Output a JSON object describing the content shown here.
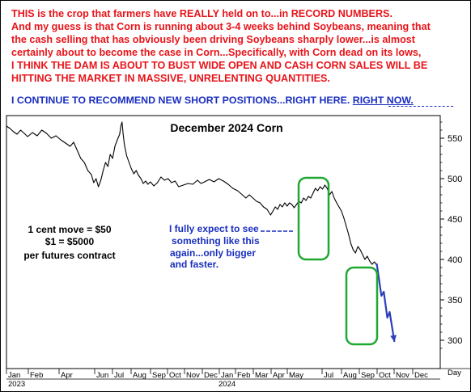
{
  "commentary": {
    "red_lines": [
      "THIS is the crop that farmers have REALLY held on to...in RECORD NUMBERS.",
      "And my guess is that Corn is running about 3-4 weeks behind Soybeans, meaning that",
      "the cash selling that has obviously been driving Soybeans sharply lower...is almost",
      "certainly about to become the case in Corn...Specifically, with Corn dead on its lows,",
      "I THINK THE DAM IS ABOUT TO BUST WIDE OPEN AND CASH CORN SALES WILL BE",
      "HITTING THE MARKET IN MASSIVE, UNRELENTING QUANTITIES."
    ],
    "blue_line": "I CONTINUE TO RECOMMEND NEW SHORT POSITIONS...RIGHT HERE.",
    "blue_line_emphasis": "RIGHT NOW."
  },
  "chart_data": {
    "type": "line",
    "title": "December 2024 Corn",
    "ylim": [
      280,
      570
    ],
    "y_ticks": [
      300,
      350,
      400,
      450,
      500,
      550
    ],
    "x_month_labels": [
      "Jan",
      "Feb",
      "Apr",
      "Jun",
      "Jul",
      "Aug",
      "Sep",
      "Oct",
      "Nov",
      "Dec",
      "Jan",
      "Feb",
      "Mar",
      "Apr",
      "May",
      "Jul",
      "Aug",
      "Sep",
      "Oct",
      "Nov",
      "Dec"
    ],
    "x_year_labels": [
      "2023",
      "2024"
    ],
    "x_axis_unit": "Day",
    "annotations": {
      "contract_info": [
        "1 cent move = $50",
        "$1 = $5000",
        "per futures contract"
      ],
      "expectation": [
        "I fully expect to see",
        "something like this",
        "again...only bigger",
        "and faster."
      ]
    },
    "series": [
      {
        "values": [
          [
            0,
            565
          ],
          [
            3,
            562
          ],
          [
            6,
            558
          ],
          [
            9,
            555
          ],
          [
            12,
            560
          ],
          [
            15,
            556
          ],
          [
            18,
            552
          ],
          [
            22,
            557
          ],
          [
            26,
            553
          ],
          [
            30,
            560
          ],
          [
            34,
            556
          ],
          [
            38,
            550
          ],
          [
            42,
            553
          ],
          [
            46,
            548
          ],
          [
            50,
            544
          ],
          [
            54,
            540
          ],
          [
            57,
            545
          ],
          [
            60,
            535
          ],
          [
            63,
            525
          ],
          [
            66,
            520
          ],
          [
            69,
            510
          ],
          [
            72,
            505
          ],
          [
            74,
            495
          ],
          [
            76,
            500
          ],
          [
            78,
            490
          ],
          [
            80,
            498
          ],
          [
            82,
            510
          ],
          [
            84,
            520
          ],
          [
            86,
            515
          ],
          [
            88,
            530
          ],
          [
            90,
            525
          ],
          [
            92,
            540
          ],
          [
            94,
            548
          ],
          [
            96,
            555
          ],
          [
            97,
            565
          ],
          [
            98,
            570
          ],
          [
            99,
            555
          ],
          [
            100,
            542
          ],
          [
            102,
            528
          ],
          [
            104,
            520
          ],
          [
            106,
            512
          ],
          [
            108,
            506
          ],
          [
            110,
            510
          ],
          [
            112,
            504
          ],
          [
            114,
            500
          ],
          [
            116,
            494
          ],
          [
            118,
            497
          ],
          [
            120,
            493
          ],
          [
            122,
            496
          ],
          [
            125,
            491
          ],
          [
            128,
            495
          ],
          [
            131,
            502
          ],
          [
            134,
            498
          ],
          [
            137,
            500
          ],
          [
            140,
            495
          ],
          [
            143,
            497
          ],
          [
            146,
            490
          ],
          [
            150,
            492
          ],
          [
            154,
            494
          ],
          [
            158,
            493
          ],
          [
            162,
            498
          ],
          [
            165,
            494
          ],
          [
            168,
            496
          ],
          [
            172,
            499
          ],
          [
            176,
            496
          ],
          [
            180,
            500
          ],
          [
            184,
            497
          ],
          [
            188,
            493
          ],
          [
            192,
            488
          ],
          [
            196,
            485
          ],
          [
            200,
            480
          ],
          [
            203,
            476
          ],
          [
            206,
            480
          ],
          [
            209,
            476
          ],
          [
            212,
            472
          ],
          [
            215,
            470
          ],
          [
            218,
            465
          ],
          [
            221,
            462
          ],
          [
            224,
            455
          ],
          [
            226,
            460
          ],
          [
            228,
            465
          ],
          [
            230,
            462
          ],
          [
            232,
            468
          ],
          [
            234,
            465
          ],
          [
            236,
            470
          ],
          [
            238,
            466
          ],
          [
            240,
            470
          ],
          [
            242,
            468
          ],
          [
            244,
            464
          ],
          [
            246,
            468
          ],
          [
            248,
            472
          ],
          [
            250,
            470
          ],
          [
            252,
            476
          ],
          [
            254,
            473
          ],
          [
            256,
            478
          ],
          [
            258,
            476
          ],
          [
            260,
            482
          ],
          [
            262,
            488
          ],
          [
            264,
            485
          ],
          [
            266,
            490
          ],
          [
            268,
            487
          ],
          [
            270,
            492
          ],
          [
            272,
            488
          ],
          [
            274,
            480
          ],
          [
            276,
            484
          ],
          [
            278,
            476
          ],
          [
            280,
            470
          ],
          [
            282,
            465
          ],
          [
            284,
            460
          ],
          [
            286,
            452
          ],
          [
            288,
            442
          ],
          [
            290,
            432
          ],
          [
            292,
            420
          ],
          [
            294,
            412
          ],
          [
            296,
            408
          ],
          [
            298,
            416
          ],
          [
            300,
            412
          ],
          [
            302,
            406
          ],
          [
            304,
            400
          ],
          [
            306,
            404
          ],
          [
            308,
            398
          ],
          [
            310,
            394
          ],
          [
            312,
            397
          ],
          [
            314,
            393
          ]
        ]
      },
      {
        "values": [
          [
            314,
            395
          ],
          [
            318,
            355
          ],
          [
            320,
            360
          ],
          [
            323,
            328
          ],
          [
            325,
            335
          ],
          [
            329,
            298
          ]
        ]
      }
    ]
  }
}
